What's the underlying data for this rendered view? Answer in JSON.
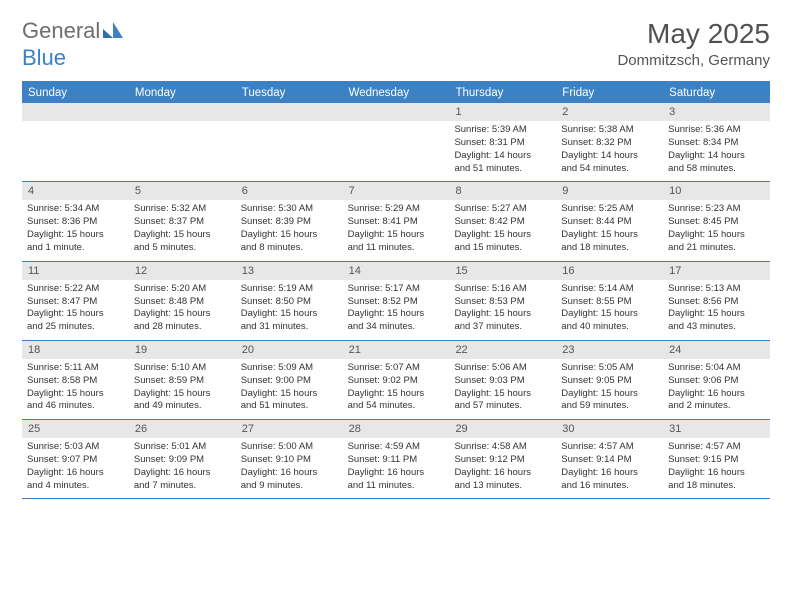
{
  "logo": {
    "text1": "General",
    "text2": "Blue"
  },
  "title": "May 2025",
  "location": "Dommitzsch, Germany",
  "colors": {
    "accent": "#3b81c3",
    "header_text": "#6e6e6e",
    "daynum_bg": "#e7e7e7",
    "body_text": "#333333"
  },
  "days_of_week": [
    "Sunday",
    "Monday",
    "Tuesday",
    "Wednesday",
    "Thursday",
    "Friday",
    "Saturday"
  ],
  "weeks": [
    {
      "nums": [
        "",
        "",
        "",
        "",
        "1",
        "2",
        "3"
      ],
      "cells": [
        null,
        null,
        null,
        null,
        {
          "sunrise": "Sunrise: 5:39 AM",
          "sunset": "Sunset: 8:31 PM",
          "day1": "Daylight: 14 hours",
          "day2": "and 51 minutes."
        },
        {
          "sunrise": "Sunrise: 5:38 AM",
          "sunset": "Sunset: 8:32 PM",
          "day1": "Daylight: 14 hours",
          "day2": "and 54 minutes."
        },
        {
          "sunrise": "Sunrise: 5:36 AM",
          "sunset": "Sunset: 8:34 PM",
          "day1": "Daylight: 14 hours",
          "day2": "and 58 minutes."
        }
      ]
    },
    {
      "nums": [
        "4",
        "5",
        "6",
        "7",
        "8",
        "9",
        "10"
      ],
      "cells": [
        {
          "sunrise": "Sunrise: 5:34 AM",
          "sunset": "Sunset: 8:36 PM",
          "day1": "Daylight: 15 hours",
          "day2": "and 1 minute."
        },
        {
          "sunrise": "Sunrise: 5:32 AM",
          "sunset": "Sunset: 8:37 PM",
          "day1": "Daylight: 15 hours",
          "day2": "and 5 minutes."
        },
        {
          "sunrise": "Sunrise: 5:30 AM",
          "sunset": "Sunset: 8:39 PM",
          "day1": "Daylight: 15 hours",
          "day2": "and 8 minutes."
        },
        {
          "sunrise": "Sunrise: 5:29 AM",
          "sunset": "Sunset: 8:41 PM",
          "day1": "Daylight: 15 hours",
          "day2": "and 11 minutes."
        },
        {
          "sunrise": "Sunrise: 5:27 AM",
          "sunset": "Sunset: 8:42 PM",
          "day1": "Daylight: 15 hours",
          "day2": "and 15 minutes."
        },
        {
          "sunrise": "Sunrise: 5:25 AM",
          "sunset": "Sunset: 8:44 PM",
          "day1": "Daylight: 15 hours",
          "day2": "and 18 minutes."
        },
        {
          "sunrise": "Sunrise: 5:23 AM",
          "sunset": "Sunset: 8:45 PM",
          "day1": "Daylight: 15 hours",
          "day2": "and 21 minutes."
        }
      ]
    },
    {
      "nums": [
        "11",
        "12",
        "13",
        "14",
        "15",
        "16",
        "17"
      ],
      "cells": [
        {
          "sunrise": "Sunrise: 5:22 AM",
          "sunset": "Sunset: 8:47 PM",
          "day1": "Daylight: 15 hours",
          "day2": "and 25 minutes."
        },
        {
          "sunrise": "Sunrise: 5:20 AM",
          "sunset": "Sunset: 8:48 PM",
          "day1": "Daylight: 15 hours",
          "day2": "and 28 minutes."
        },
        {
          "sunrise": "Sunrise: 5:19 AM",
          "sunset": "Sunset: 8:50 PM",
          "day1": "Daylight: 15 hours",
          "day2": "and 31 minutes."
        },
        {
          "sunrise": "Sunrise: 5:17 AM",
          "sunset": "Sunset: 8:52 PM",
          "day1": "Daylight: 15 hours",
          "day2": "and 34 minutes."
        },
        {
          "sunrise": "Sunrise: 5:16 AM",
          "sunset": "Sunset: 8:53 PM",
          "day1": "Daylight: 15 hours",
          "day2": "and 37 minutes."
        },
        {
          "sunrise": "Sunrise: 5:14 AM",
          "sunset": "Sunset: 8:55 PM",
          "day1": "Daylight: 15 hours",
          "day2": "and 40 minutes."
        },
        {
          "sunrise": "Sunrise: 5:13 AM",
          "sunset": "Sunset: 8:56 PM",
          "day1": "Daylight: 15 hours",
          "day2": "and 43 minutes."
        }
      ]
    },
    {
      "nums": [
        "18",
        "19",
        "20",
        "21",
        "22",
        "23",
        "24"
      ],
      "cells": [
        {
          "sunrise": "Sunrise: 5:11 AM",
          "sunset": "Sunset: 8:58 PM",
          "day1": "Daylight: 15 hours",
          "day2": "and 46 minutes."
        },
        {
          "sunrise": "Sunrise: 5:10 AM",
          "sunset": "Sunset: 8:59 PM",
          "day1": "Daylight: 15 hours",
          "day2": "and 49 minutes."
        },
        {
          "sunrise": "Sunrise: 5:09 AM",
          "sunset": "Sunset: 9:00 PM",
          "day1": "Daylight: 15 hours",
          "day2": "and 51 minutes."
        },
        {
          "sunrise": "Sunrise: 5:07 AM",
          "sunset": "Sunset: 9:02 PM",
          "day1": "Daylight: 15 hours",
          "day2": "and 54 minutes."
        },
        {
          "sunrise": "Sunrise: 5:06 AM",
          "sunset": "Sunset: 9:03 PM",
          "day1": "Daylight: 15 hours",
          "day2": "and 57 minutes."
        },
        {
          "sunrise": "Sunrise: 5:05 AM",
          "sunset": "Sunset: 9:05 PM",
          "day1": "Daylight: 15 hours",
          "day2": "and 59 minutes."
        },
        {
          "sunrise": "Sunrise: 5:04 AM",
          "sunset": "Sunset: 9:06 PM",
          "day1": "Daylight: 16 hours",
          "day2": "and 2 minutes."
        }
      ]
    },
    {
      "nums": [
        "25",
        "26",
        "27",
        "28",
        "29",
        "30",
        "31"
      ],
      "cells": [
        {
          "sunrise": "Sunrise: 5:03 AM",
          "sunset": "Sunset: 9:07 PM",
          "day1": "Daylight: 16 hours",
          "day2": "and 4 minutes."
        },
        {
          "sunrise": "Sunrise: 5:01 AM",
          "sunset": "Sunset: 9:09 PM",
          "day1": "Daylight: 16 hours",
          "day2": "and 7 minutes."
        },
        {
          "sunrise": "Sunrise: 5:00 AM",
          "sunset": "Sunset: 9:10 PM",
          "day1": "Daylight: 16 hours",
          "day2": "and 9 minutes."
        },
        {
          "sunrise": "Sunrise: 4:59 AM",
          "sunset": "Sunset: 9:11 PM",
          "day1": "Daylight: 16 hours",
          "day2": "and 11 minutes."
        },
        {
          "sunrise": "Sunrise: 4:58 AM",
          "sunset": "Sunset: 9:12 PM",
          "day1": "Daylight: 16 hours",
          "day2": "and 13 minutes."
        },
        {
          "sunrise": "Sunrise: 4:57 AM",
          "sunset": "Sunset: 9:14 PM",
          "day1": "Daylight: 16 hours",
          "day2": "and 16 minutes."
        },
        {
          "sunrise": "Sunrise: 4:57 AM",
          "sunset": "Sunset: 9:15 PM",
          "day1": "Daylight: 16 hours",
          "day2": "and 18 minutes."
        }
      ]
    }
  ]
}
